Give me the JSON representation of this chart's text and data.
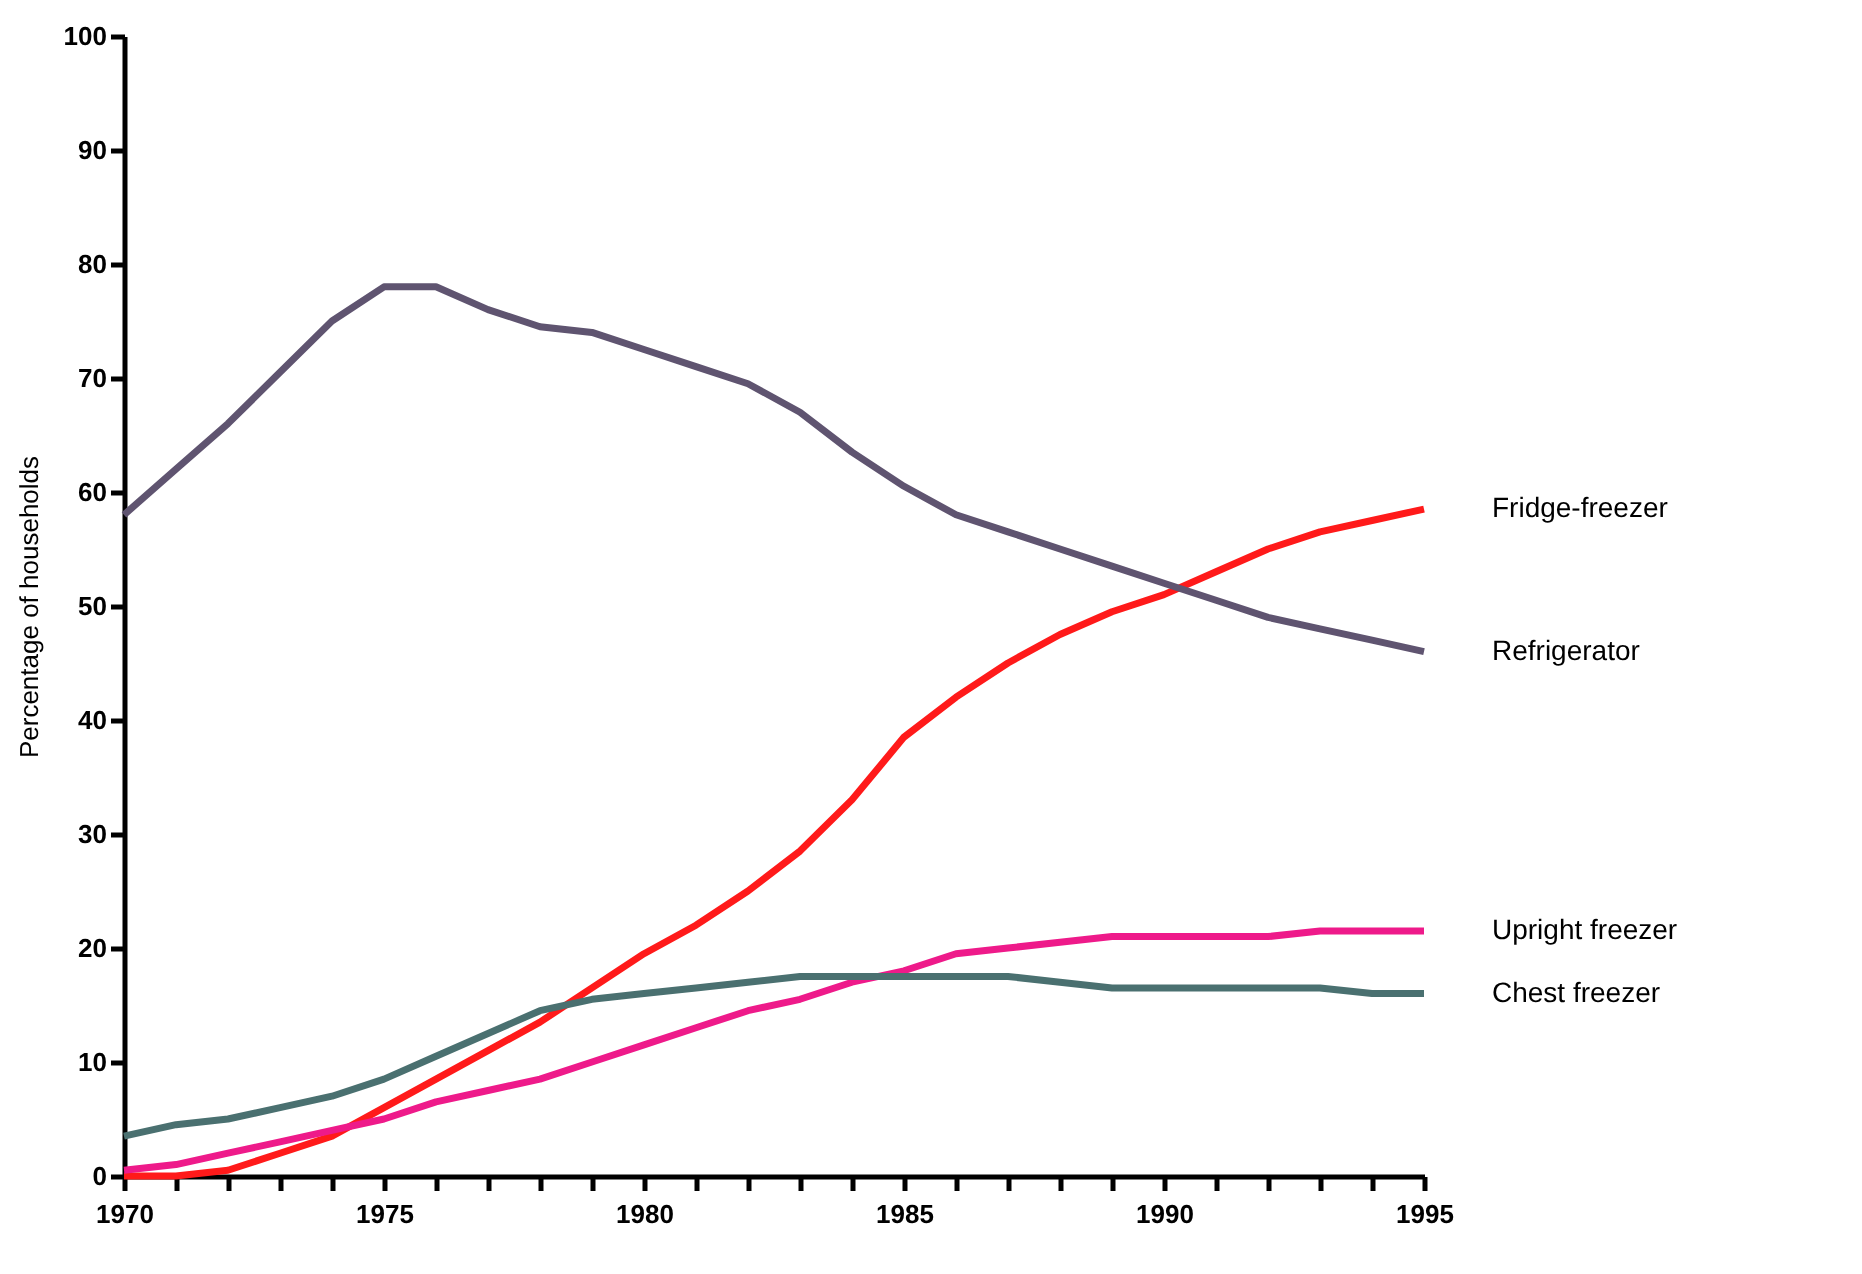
{
  "chart_data": {
    "type": "line",
    "ylabel": "Percentage of households",
    "x": [
      1970,
      1971,
      1972,
      1973,
      1974,
      1975,
      1976,
      1977,
      1978,
      1979,
      1980,
      1981,
      1982,
      1983,
      1984,
      1985,
      1986,
      1987,
      1988,
      1989,
      1990,
      1991,
      1992,
      1993,
      1994,
      1995
    ],
    "xlim": [
      1970,
      1995
    ],
    "ylim": [
      0,
      100
    ],
    "yticks": [
      0,
      10,
      20,
      30,
      40,
      50,
      60,
      70,
      80,
      90,
      100
    ],
    "xticks": [
      1970,
      {
        "value": 1971,
        "label": null
      },
      {
        "value": 1972,
        "label": null
      },
      {
        "value": 1973,
        "label": null
      },
      {
        "value": 1974,
        "label": null
      },
      1975,
      {
        "value": 1976,
        "label": null
      },
      {
        "value": 1977,
        "label": null
      },
      {
        "value": 1978,
        "label": null
      },
      {
        "value": 1979,
        "label": null
      },
      1980,
      {
        "value": 1981,
        "label": null
      },
      {
        "value": 1982,
        "label": null
      },
      {
        "value": 1983,
        "label": null
      },
      {
        "value": 1984,
        "label": null
      },
      1985,
      {
        "value": 1986,
        "label": null
      },
      {
        "value": 1987,
        "label": null
      },
      {
        "value": 1988,
        "label": null
      },
      {
        "value": 1989,
        "label": null
      },
      1990,
      {
        "value": 1991,
        "label": null
      },
      {
        "value": 1992,
        "label": null
      },
      {
        "value": 1993,
        "label": null
      },
      {
        "value": 1994,
        "label": null
      },
      1995
    ],
    "grid": false,
    "legend": false,
    "marker": "none",
    "line_style": "solid",
    "series": [
      {
        "name": "Fridge-freezer",
        "color": "#ff1a1a",
        "values": [
          0,
          0,
          0.5,
          2,
          3.5,
          6,
          8.5,
          11,
          13.5,
          16.5,
          19.5,
          22,
          25,
          28.5,
          33,
          38.5,
          42,
          45,
          47.5,
          49.5,
          51,
          53,
          55,
          56.5,
          57.5,
          58.5
        ]
      },
      {
        "name": "Refrigerator",
        "color": "#5f5470",
        "values": [
          58,
          62,
          66,
          70.5,
          75,
          78,
          78,
          76,
          74.5,
          74,
          72.5,
          71,
          69.5,
          67,
          63.5,
          60.5,
          58,
          56.5,
          55,
          53.5,
          52,
          50.5,
          49,
          48,
          47,
          46
        ]
      },
      {
        "name": "Upright freezer",
        "color": "#ee1a8a",
        "values": [
          0.5,
          1,
          2,
          3,
          4,
          5,
          6.5,
          7.5,
          8.5,
          10,
          11.5,
          13,
          14.5,
          15.5,
          17,
          18,
          19.5,
          20,
          20.5,
          21,
          21,
          21,
          21,
          21.5,
          21.5,
          21.5
        ]
      },
      {
        "name": "Chest freezer",
        "color": "#4a7070",
        "values": [
          3.5,
          4.5,
          5,
          6,
          7,
          8.5,
          10.5,
          12.5,
          14.5,
          15.5,
          16,
          16.5,
          17,
          17.5,
          17.5,
          17.5,
          17.5,
          17.5,
          17,
          16.5,
          16.5,
          16.5,
          16.5,
          16.5,
          16,
          16
        ]
      }
    ]
  }
}
